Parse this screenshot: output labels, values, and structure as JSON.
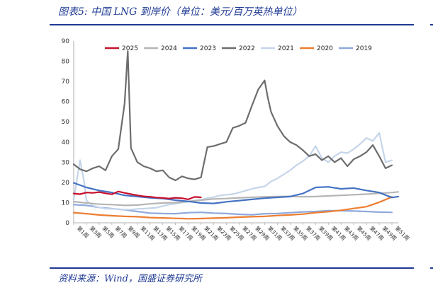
{
  "header": {
    "title": "图表5:  中国 LNG 到岸价（单位：美元/百万英热单位）"
  },
  "footer": {
    "source": "资料来源：Wind，国盛证券研究所"
  },
  "chart_data": {
    "type": "line",
    "title": "",
    "xlabel": "",
    "ylabel": "",
    "ylim": [
      0,
      90
    ],
    "yticks": [
      0,
      10,
      20,
      30,
      40,
      50,
      60,
      70,
      80,
      90
    ],
    "x_range": [
      1,
      52
    ],
    "x_tick_labels": [
      "第1周",
      "第3周",
      "第5周",
      "第7周",
      "第9周",
      "第11周",
      "第13周",
      "第15周",
      "第17周",
      "第19周",
      "第21周",
      "第23周",
      "第25周",
      "第27周",
      "第29周",
      "第31周",
      "第33周",
      "第35周",
      "第37周",
      "第39周",
      "第41周",
      "第43周",
      "第45周",
      "第47周",
      "第49周",
      "第51周"
    ],
    "grid": false,
    "legend_position": "top",
    "series": [
      {
        "name": "2025",
        "color": "#c8102e",
        "x": [
          1,
          2,
          3,
          4,
          5,
          6,
          7,
          8,
          9,
          10,
          11,
          12,
          13,
          14,
          15,
          16,
          17,
          18,
          19,
          20,
          21
        ],
        "y": [
          14.5,
          14.2,
          15.0,
          14.8,
          15.2,
          14.6,
          14.1,
          15.5,
          14.8,
          14.2,
          13.6,
          13.1,
          12.9,
          12.5,
          12.3,
          12.0,
          12.4,
          12.2,
          11.6,
          12.8,
          12.6
        ]
      },
      {
        "name": "2024",
        "color": "#b5b5b5",
        "x": [
          1,
          3,
          5,
          7,
          9,
          11,
          13,
          15,
          17,
          19,
          21,
          23,
          25,
          27,
          29,
          31,
          33,
          35,
          37,
          39,
          41,
          43,
          45,
          47,
          49,
          51,
          52
        ],
        "y": [
          10.5,
          9.8,
          9.2,
          9.0,
          8.6,
          8.8,
          9.4,
          9.8,
          10.0,
          10.6,
          11.2,
          11.8,
          12.0,
          12.4,
          12.6,
          12.9,
          13.0,
          13.1,
          12.9,
          13.0,
          13.3,
          13.6,
          13.9,
          14.2,
          14.6,
          15.0,
          15.3
        ]
      },
      {
        "name": "2023",
        "color": "#4472c4",
        "x": [
          1,
          3,
          5,
          7,
          9,
          11,
          13,
          15,
          17,
          19,
          21,
          23,
          25,
          27,
          29,
          31,
          33,
          35,
          37,
          39,
          41,
          43,
          45,
          47,
          49,
          51,
          52
        ],
        "y": [
          19.8,
          17.5,
          16.0,
          15.0,
          13.6,
          13.0,
          12.4,
          12.0,
          11.2,
          10.6,
          9.8,
          9.6,
          10.4,
          11.0,
          11.6,
          12.2,
          12.6,
          13.0,
          14.5,
          17.5,
          17.8,
          16.8,
          17.2,
          16.0,
          15.0,
          12.5,
          13.0
        ]
      },
      {
        "name": "2022",
        "color": "#6d6d6d",
        "x": [
          1,
          2,
          3,
          4,
          5,
          6,
          7,
          8,
          9,
          9.5,
          10,
          11,
          12,
          13,
          14,
          15,
          16,
          17,
          18,
          19,
          20,
          21,
          22,
          23,
          24,
          25,
          26,
          27,
          28,
          29,
          30,
          31,
          31.5,
          32,
          33,
          34,
          35,
          36,
          37,
          38,
          39,
          40,
          41,
          42,
          43,
          44,
          45,
          46,
          47,
          48,
          49,
          50,
          51
        ],
        "y": [
          29.0,
          26.5,
          25.5,
          27.0,
          28.0,
          26.0,
          33.0,
          36.5,
          59.0,
          85.0,
          37.0,
          30.0,
          28.0,
          27.0,
          25.5,
          26.0,
          22.5,
          21.0,
          23.0,
          22.0,
          21.5,
          22.5,
          37.5,
          38.0,
          39.0,
          40.0,
          47.0,
          48.0,
          49.5,
          58.0,
          66.0,
          70.5,
          62.0,
          55.0,
          48.0,
          43.0,
          40.0,
          38.5,
          36.0,
          33.0,
          34.0,
          31.0,
          33.0,
          30.0,
          32.0,
          28.0,
          31.5,
          33.0,
          35.0,
          38.5,
          33.0,
          27.0,
          28.5
        ]
      },
      {
        "name": "2021",
        "color": "#c5d5ea",
        "x": [
          1,
          2,
          2.6,
          3,
          4,
          5,
          6,
          7,
          8,
          9,
          10,
          11,
          12,
          13,
          14,
          15,
          16,
          17,
          18,
          19,
          20,
          21,
          22,
          23,
          24,
          25,
          26,
          27,
          28,
          29,
          30,
          31,
          32,
          33,
          34,
          35,
          36,
          37,
          38,
          39,
          40,
          41,
          42,
          43,
          44,
          45,
          46,
          47,
          48,
          49,
          50,
          51
        ],
        "y": [
          11.5,
          31.0,
          21.0,
          11.0,
          8.5,
          7.6,
          7.0,
          6.9,
          6.8,
          6.5,
          6.6,
          6.9,
          7.0,
          7.2,
          7.5,
          8.3,
          9.0,
          9.4,
          10.0,
          10.4,
          11.0,
          11.4,
          12.2,
          12.7,
          13.5,
          13.9,
          14.2,
          15.0,
          15.9,
          16.8,
          17.5,
          18.0,
          20.5,
          22.0,
          24.0,
          26.0,
          28.5,
          30.5,
          33.0,
          38.0,
          32.0,
          30.0,
          33.0,
          35.0,
          34.5,
          36.5,
          39.0,
          42.0,
          40.5,
          44.5,
          30.0,
          31.0
        ]
      },
      {
        "name": "2020",
        "color": "#ed7d31",
        "x": [
          1,
          3,
          5,
          7,
          9,
          11,
          13,
          15,
          17,
          19,
          21,
          23,
          25,
          27,
          29,
          31,
          33,
          35,
          37,
          39,
          41,
          43,
          45,
          47,
          49,
          50,
          51
        ],
        "y": [
          5.0,
          4.5,
          3.9,
          3.5,
          3.2,
          3.0,
          2.6,
          2.4,
          2.2,
          2.0,
          2.1,
          2.3,
          2.5,
          2.8,
          3.0,
          3.2,
          3.6,
          3.9,
          4.3,
          5.0,
          5.5,
          6.2,
          7.1,
          8.0,
          10.2,
          11.5,
          12.8
        ]
      },
      {
        "name": "2019",
        "color": "#8ea9db",
        "x": [
          1,
          3,
          5,
          7,
          9,
          11,
          13,
          15,
          17,
          19,
          21,
          23,
          25,
          27,
          29,
          31,
          33,
          35,
          37,
          39,
          41,
          43,
          45,
          47,
          49,
          51
        ],
        "y": [
          9.0,
          8.6,
          7.6,
          7.0,
          6.4,
          5.6,
          4.8,
          4.6,
          4.5,
          5.0,
          5.2,
          4.8,
          4.6,
          4.2,
          4.0,
          4.5,
          4.6,
          5.0,
          5.4,
          5.6,
          6.0,
          6.0,
          5.8,
          5.6,
          5.3,
          5.2
        ]
      }
    ]
  }
}
